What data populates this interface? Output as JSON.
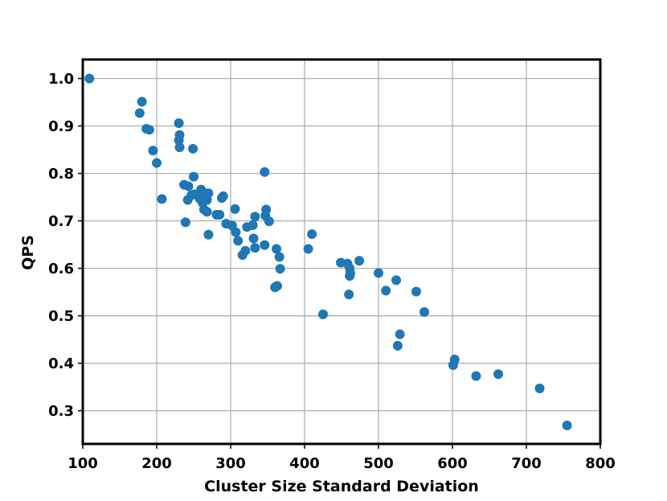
{
  "chart_data": {
    "type": "scatter",
    "xlabel": "Cluster Size Standard Deviation",
    "ylabel": "QPS",
    "xlim": [
      100,
      800
    ],
    "ylim": [
      0.23,
      1.04
    ],
    "xticks": [
      100,
      200,
      300,
      400,
      500,
      600,
      700,
      800
    ],
    "yticks": [
      0.3,
      0.4,
      0.5,
      0.6,
      0.7,
      0.8,
      0.9,
      1.0
    ],
    "xtick_labels": [
      "100",
      "200",
      "300",
      "400",
      "500",
      "600",
      "700",
      "800"
    ],
    "ytick_labels": [
      "0.3",
      "0.4",
      "0.5",
      "0.6",
      "0.7",
      "0.8",
      "0.9",
      "1.0"
    ],
    "grid": true,
    "marker_color": "#1f77b4",
    "points": [
      [
        109,
        1.0
      ],
      [
        180,
        0.951
      ],
      [
        177,
        0.927
      ],
      [
        186,
        0.894
      ],
      [
        190,
        0.892
      ],
      [
        195,
        0.848
      ],
      [
        200,
        0.822
      ],
      [
        207,
        0.746
      ],
      [
        230,
        0.906
      ],
      [
        231,
        0.881
      ],
      [
        230,
        0.87
      ],
      [
        231,
        0.855
      ],
      [
        249,
        0.852
      ],
      [
        250,
        0.793
      ],
      [
        237,
        0.776
      ],
      [
        243,
        0.773
      ],
      [
        251,
        0.756
      ],
      [
        242,
        0.744
      ],
      [
        247,
        0.754
      ],
      [
        258,
        0.747
      ],
      [
        260,
        0.766
      ],
      [
        263,
        0.76
      ],
      [
        265,
        0.752
      ],
      [
        268,
        0.744
      ],
      [
        262,
        0.738
      ],
      [
        270,
        0.758
      ],
      [
        264,
        0.724
      ],
      [
        268,
        0.719
      ],
      [
        239,
        0.697
      ],
      [
        270,
        0.671
      ],
      [
        290,
        0.752
      ],
      [
        288,
        0.748
      ],
      [
        281,
        0.713
      ],
      [
        285,
        0.713
      ],
      [
        294,
        0.694
      ],
      [
        302,
        0.69
      ],
      [
        306,
        0.725
      ],
      [
        307,
        0.676
      ],
      [
        310,
        0.658
      ],
      [
        316,
        0.628
      ],
      [
        320,
        0.637
      ],
      [
        322,
        0.687
      ],
      [
        330,
        0.691
      ],
      [
        333,
        0.709
      ],
      [
        331,
        0.663
      ],
      [
        333,
        0.643
      ],
      [
        346,
        0.649
      ],
      [
        346,
        0.803
      ],
      [
        347,
        0.711
      ],
      [
        348,
        0.724
      ],
      [
        352,
        0.699
      ],
      [
        362,
        0.641
      ],
      [
        366,
        0.624
      ],
      [
        360,
        0.56
      ],
      [
        363,
        0.563
      ],
      [
        367,
        0.599
      ],
      [
        405,
        0.641
      ],
      [
        410,
        0.672
      ],
      [
        425,
        0.503
      ],
      [
        449,
        0.612
      ],
      [
        458,
        0.61
      ],
      [
        461,
        0.6
      ],
      [
        462,
        0.589
      ],
      [
        461,
        0.584
      ],
      [
        460,
        0.545
      ],
      [
        474,
        0.616
      ],
      [
        500,
        0.59
      ],
      [
        510,
        0.553
      ],
      [
        524,
        0.575
      ],
      [
        551,
        0.551
      ],
      [
        562,
        0.508
      ],
      [
        526,
        0.437
      ],
      [
        529,
        0.461
      ],
      [
        601,
        0.396
      ],
      [
        603,
        0.408
      ],
      [
        632,
        0.373
      ],
      [
        662,
        0.377
      ],
      [
        718,
        0.347
      ],
      [
        755,
        0.269
      ]
    ]
  }
}
